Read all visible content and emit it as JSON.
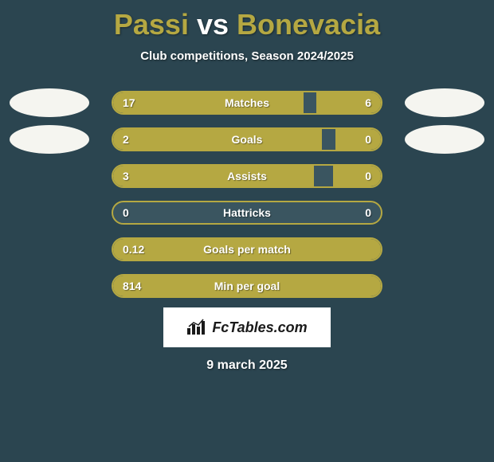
{
  "header": {
    "player_left": "Passi",
    "vs_word": "vs",
    "player_right": "Bonevacia",
    "title_color_player": "#b5a842",
    "title_color_vs": "#ffffff",
    "title_fontsize": 36,
    "subtitle": "Club competitions, Season 2024/2025",
    "subtitle_fontsize": 15
  },
  "background_color": "#2b4550",
  "bar_fill_color": "#b5a842",
  "bar_empty_color": "#3a5560",
  "bar_border_color": "#b5a842",
  "avatar_color": "#f5f5f0",
  "text_color": "#ffffff",
  "stats": [
    {
      "label": "Matches",
      "left_value": "17",
      "right_value": "6",
      "left_pct": 71,
      "right_pct": 24,
      "show_avatars": true
    },
    {
      "label": "Goals",
      "left_value": "2",
      "right_value": "0",
      "left_pct": 78,
      "right_pct": 17,
      "show_avatars": true
    },
    {
      "label": "Assists",
      "left_value": "3",
      "right_value": "0",
      "left_pct": 75,
      "right_pct": 18,
      "show_avatars": false
    },
    {
      "label": "Hattricks",
      "left_value": "0",
      "right_value": "0",
      "left_pct": 0,
      "right_pct": 0,
      "show_avatars": false
    },
    {
      "label": "Goals per match",
      "left_value": "0.12",
      "right_value": "",
      "left_pct": 100,
      "right_pct": 0,
      "show_avatars": false
    },
    {
      "label": "Min per goal",
      "left_value": "814",
      "right_value": "",
      "left_pct": 100,
      "right_pct": 0,
      "show_avatars": false
    }
  ],
  "footer": {
    "logo_text": "FcTables.com",
    "logo_bg": "#ffffff",
    "logo_text_color": "#1a1a1a",
    "date": "9 march 2025",
    "date_fontsize": 16
  }
}
